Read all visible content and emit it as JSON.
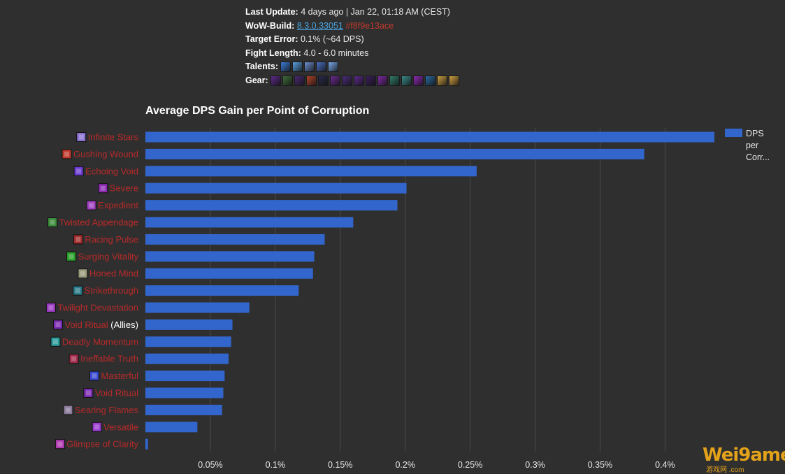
{
  "info": {
    "last_update_label": "Last Update:",
    "last_update_value": "4 days ago | Jan 22, 01:18 AM (CEST)",
    "build_label": "WoW-Build:",
    "build_link": "8.3.0.33051",
    "build_hash": "#f8f9e13ace",
    "target_error_label": "Target Error:",
    "target_error_value": "0.1% (~64 DPS)",
    "fight_length_label": "Fight Length:",
    "fight_length_value": "4.0 - 6.0 minutes",
    "talents_label": "Talents:",
    "gear_label": "Gear:",
    "talent_icon_colors": [
      "#3a7bd5",
      "#5aa0e0",
      "#6b8fd0",
      "#4a6fc0",
      "#7aa8e8"
    ],
    "gear_icon_colors": [
      "#5b2a86",
      "#3d6b3a",
      "#4a2a70",
      "#b0432a",
      "#2a2a4a",
      "#6a2a90",
      "#4b2d7a",
      "#5a2a8a",
      "#3a1f5a",
      "#7a2aa0",
      "#2f7a6a",
      "#3a8a8a",
      "#8a2ab0",
      "#2a6aa0",
      "#c8a040",
      "#d0a040"
    ]
  },
  "chart_data": {
    "type": "bar",
    "orientation": "horizontal",
    "title": "Average DPS Gain per Point of Corruption",
    "xlabel": "",
    "ylabel": "",
    "xlim": [
      0,
      0.438
    ],
    "x_ticks": [
      0.05,
      0.1,
      0.15,
      0.2,
      0.25,
      0.3,
      0.35,
      0.4
    ],
    "x_tick_labels": [
      "0.05%",
      "0.1%",
      "0.15%",
      "0.2%",
      "0.25%",
      "0.3%",
      "0.35%",
      "0.4%"
    ],
    "grid": true,
    "legend": "top-right",
    "bar_color": "#3366cc",
    "series": [
      {
        "name": "DPS per Corr...",
        "values": [
          0.438,
          0.384,
          0.255,
          0.201,
          0.194,
          0.16,
          0.138,
          0.13,
          0.129,
          0.118,
          0.08,
          0.067,
          0.066,
          0.064,
          0.061,
          0.06,
          0.059,
          0.04,
          0.002
        ]
      }
    ],
    "categories": [
      {
        "name": "Infinite Stars",
        "suffix": "",
        "icon_color": "#8a6fd0"
      },
      {
        "name": "Gushing Wound",
        "suffix": "",
        "icon_color": "#c0392b"
      },
      {
        "name": "Echoing Void",
        "suffix": "",
        "icon_color": "#6a3ad0"
      },
      {
        "name": "Severe",
        "suffix": "",
        "icon_color": "#8a2ab0"
      },
      {
        "name": "Expedient",
        "suffix": "",
        "icon_color": "#a040c0"
      },
      {
        "name": "Twisted Appendage",
        "suffix": "",
        "icon_color": "#3a8a3a"
      },
      {
        "name": "Racing Pulse",
        "suffix": "",
        "icon_color": "#a02a2a"
      },
      {
        "name": "Surging Vitality",
        "suffix": "",
        "icon_color": "#2aa02a"
      },
      {
        "name": "Honed Mind",
        "suffix": "",
        "icon_color": "#9a9a7a"
      },
      {
        "name": "Strikethrough",
        "suffix": "",
        "icon_color": "#2a7a8a"
      },
      {
        "name": "Twilight Devastation",
        "suffix": "",
        "icon_color": "#9a3ac0"
      },
      {
        "name": "Void Ritual",
        "suffix": " (Allies)",
        "icon_color": "#7a2ab0"
      },
      {
        "name": "Deadly Momentum",
        "suffix": "",
        "icon_color": "#2a9a9a"
      },
      {
        "name": "Ineffable Truth",
        "suffix": "",
        "icon_color": "#a02a4a"
      },
      {
        "name": "Masterful",
        "suffix": "",
        "icon_color": "#3a4ad0"
      },
      {
        "name": "Void Ritual",
        "suffix": "",
        "icon_color": "#7a2ab0"
      },
      {
        "name": "Searing Flames",
        "suffix": "",
        "icon_color": "#8a7a9a"
      },
      {
        "name": "Versatile",
        "suffix": "",
        "icon_color": "#9a3ad0"
      },
      {
        "name": "Glimpse of Clarity",
        "suffix": "",
        "icon_color": "#b03ab0"
      }
    ]
  },
  "watermark": {
    "text": "Wei9amer",
    "sub": "游戏网 .com"
  }
}
